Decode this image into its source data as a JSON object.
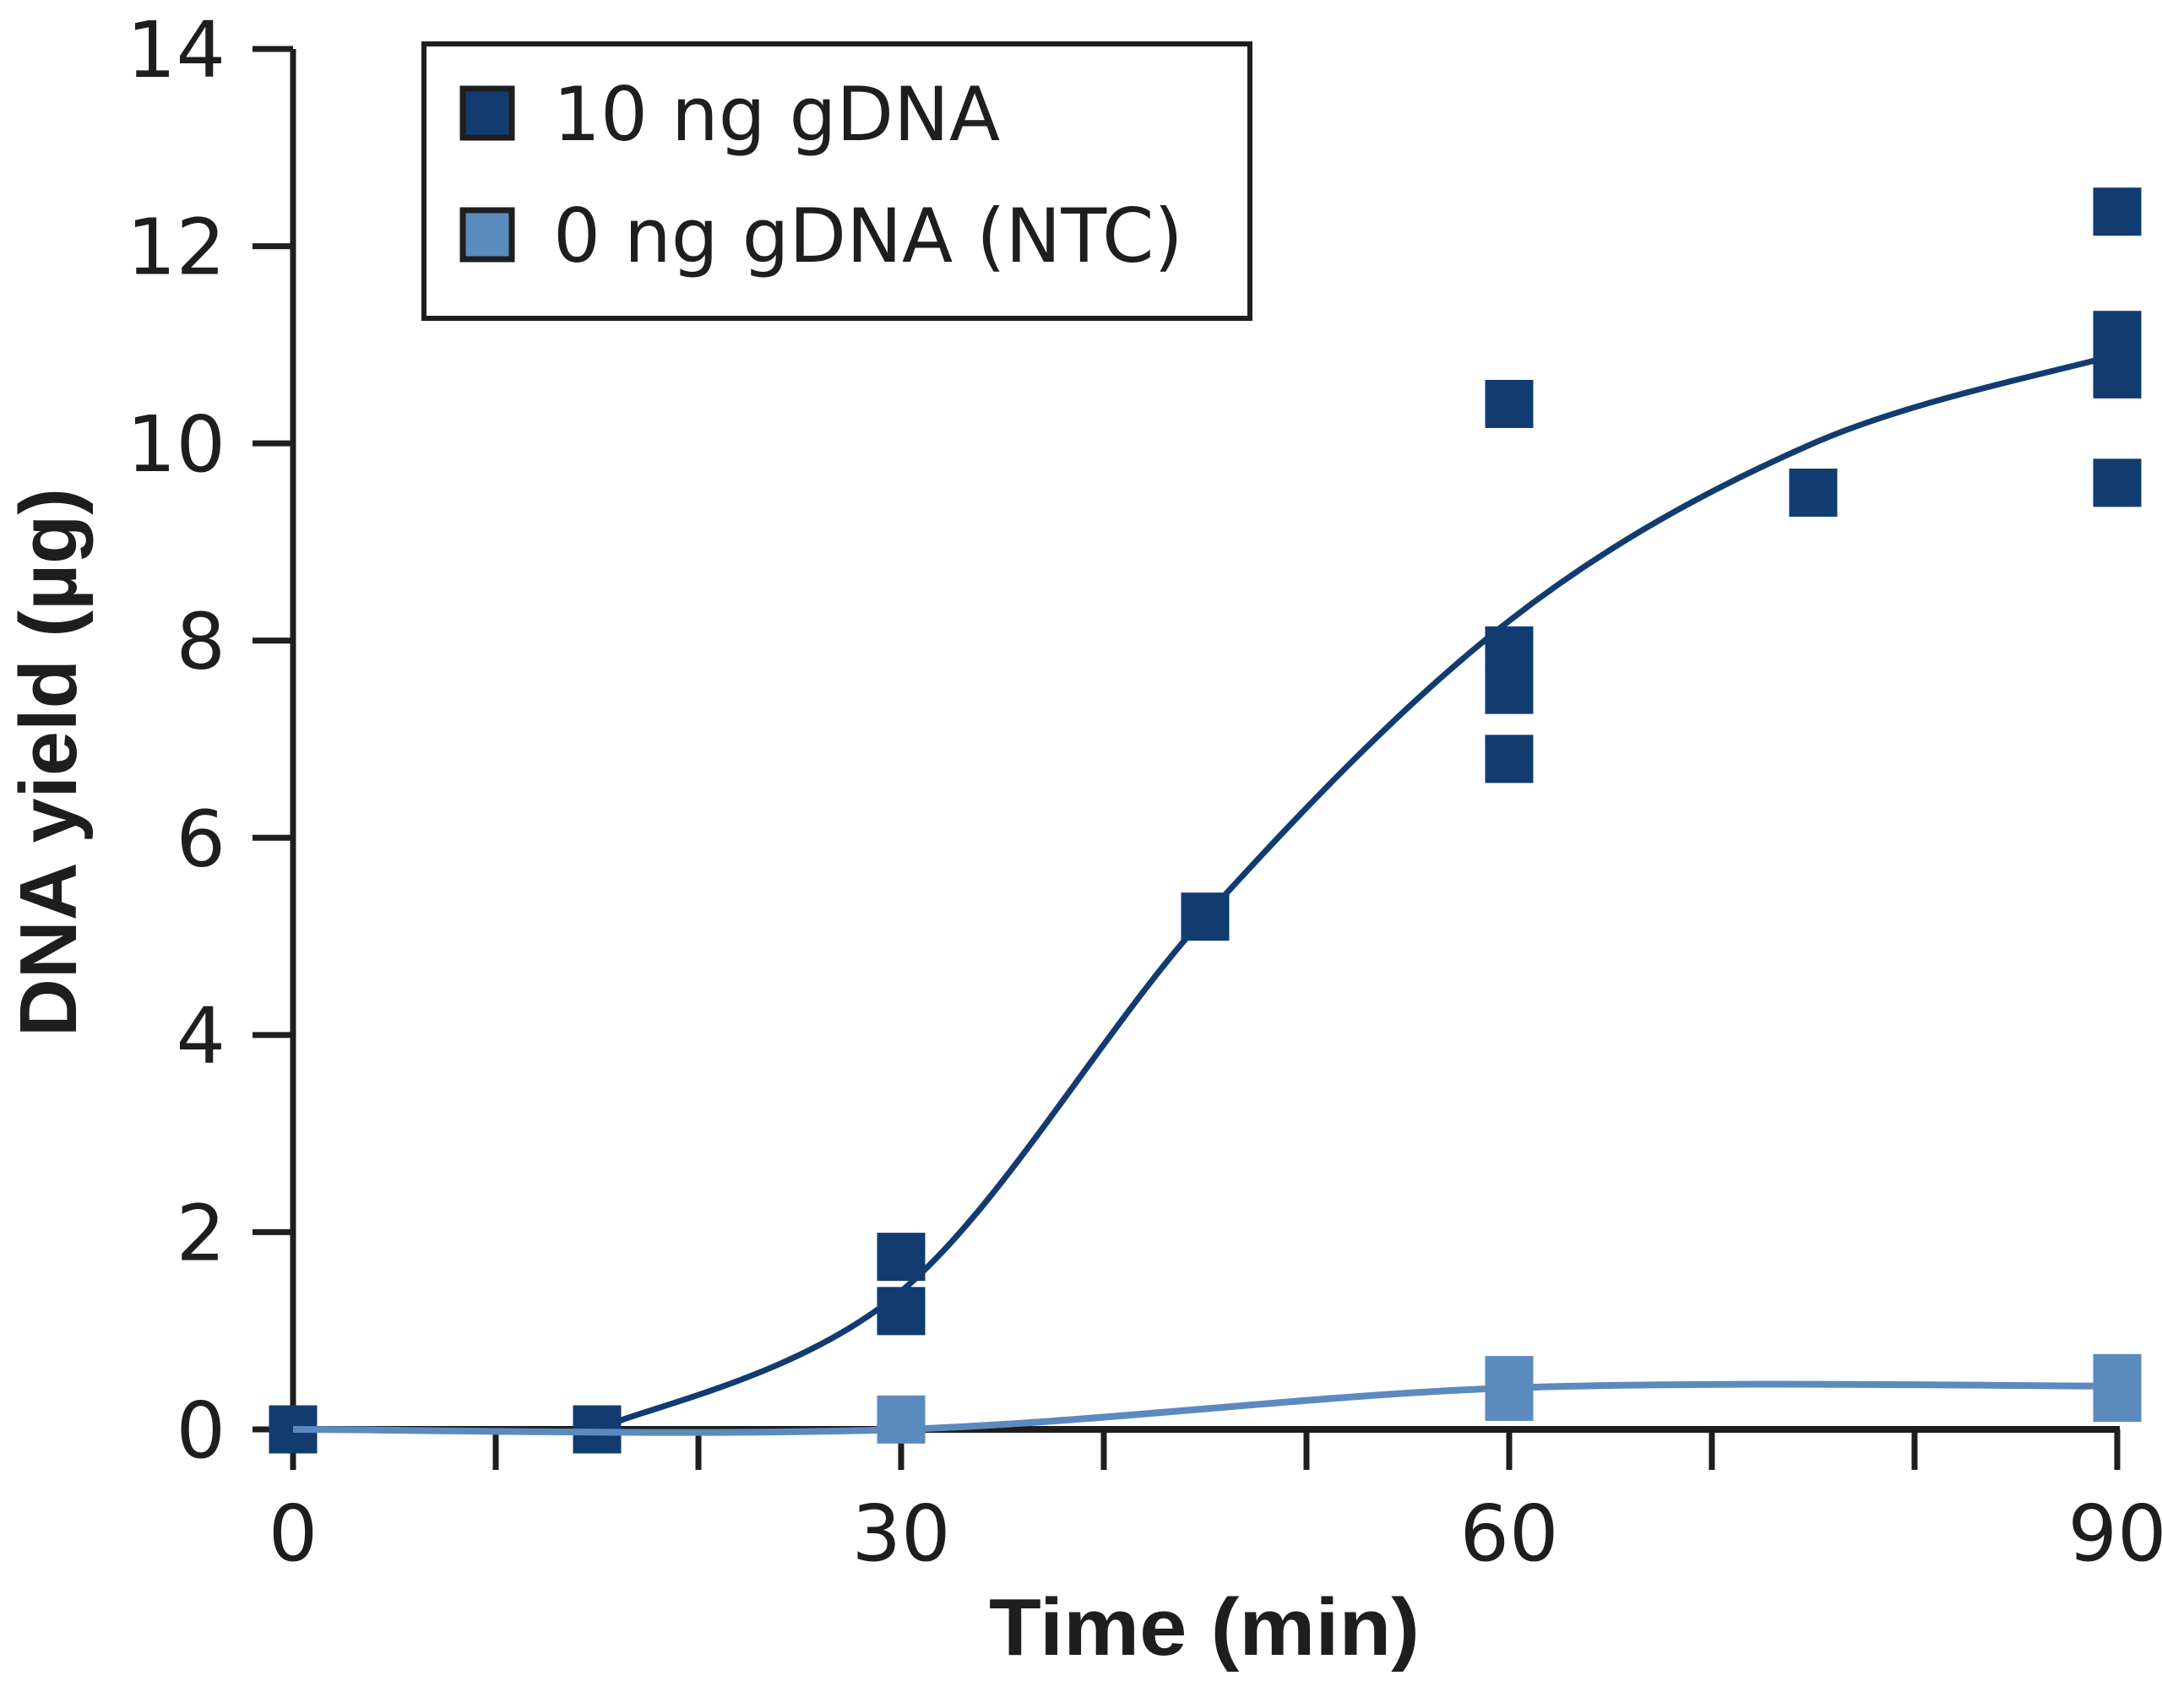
{
  "chart_data": {
    "type": "scatter",
    "title": "",
    "xlabel": "Time (min)",
    "ylabel": "DNA yield (µg)",
    "xlim": [
      0,
      90
    ],
    "ylim": [
      0,
      14
    ],
    "x_ticks": [
      0,
      10,
      20,
      30,
      40,
      50,
      60,
      70,
      80,
      90
    ],
    "x_tick_labels": [
      {
        "value": 0,
        "label": "0"
      },
      {
        "value": 30,
        "label": "30"
      },
      {
        "value": 60,
        "label": "60"
      },
      {
        "value": 90,
        "label": "90"
      }
    ],
    "y_ticks": [
      {
        "value": 0,
        "label": "0"
      },
      {
        "value": 2,
        "label": "2"
      },
      {
        "value": 4,
        "label": "4"
      },
      {
        "value": 6,
        "label": "6"
      },
      {
        "value": 8,
        "label": "8"
      },
      {
        "value": 10,
        "label": "10"
      },
      {
        "value": 12,
        "label": "12"
      },
      {
        "value": 14,
        "label": "14"
      }
    ],
    "grid": false,
    "legend_position": "top-left",
    "series": [
      {
        "name": "10 ng gDNA",
        "color": "#123b70",
        "points": [
          {
            "x": 0,
            "y": 0
          },
          {
            "x": 15,
            "y": 0
          },
          {
            "x": 30,
            "y": 1.75
          },
          {
            "x": 30,
            "y": 1.2
          },
          {
            "x": 45,
            "y": 5.2
          },
          {
            "x": 60,
            "y": 10.4
          },
          {
            "x": 60,
            "y": 7.9
          },
          {
            "x": 60,
            "y": 7.5
          },
          {
            "x": 60,
            "y": 6.8
          },
          {
            "x": 75,
            "y": 9.5
          },
          {
            "x": 90,
            "y": 12.35
          },
          {
            "x": 90,
            "y": 11.1
          },
          {
            "x": 90,
            "y": 10.7
          },
          {
            "x": 90,
            "y": 9.6
          }
        ],
        "fit_curve": [
          {
            "x": 15,
            "y": 0
          },
          {
            "x": 30,
            "y": 1.4
          },
          {
            "x": 45,
            "y": 5.2
          },
          {
            "x": 60,
            "y": 8.2
          },
          {
            "x": 75,
            "y": 10.0
          },
          {
            "x": 90,
            "y": 10.9
          }
        ]
      },
      {
        "name": "0 ng gDNA (NTC)",
        "color": "#5b8abf",
        "points": [
          {
            "x": 0,
            "y": 0
          },
          {
            "x": 15,
            "y": 0
          },
          {
            "x": 30,
            "y": 0.1
          },
          {
            "x": 60,
            "y": 0.5
          },
          {
            "x": 60,
            "y": 0.33
          },
          {
            "x": 90,
            "y": 0.52
          },
          {
            "x": 90,
            "y": 0.32
          }
        ],
        "fit_curve": [
          {
            "x": 0,
            "y": 0
          },
          {
            "x": 30,
            "y": 0
          },
          {
            "x": 60,
            "y": 0.42
          },
          {
            "x": 90,
            "y": 0.44
          }
        ]
      }
    ]
  }
}
